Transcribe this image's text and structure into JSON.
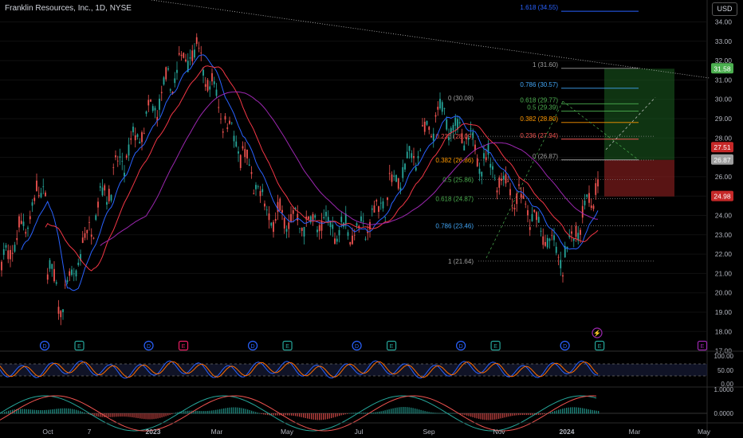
{
  "header": {
    "symbol_title": "Franklin Resources, Inc., 1D, NYSE",
    "currency_button": "USD"
  },
  "colors": {
    "up": "#26a69a",
    "down": "#ef5350",
    "green_zone": "#1b5e20",
    "red_zone": "#7f1d1d",
    "blue": "#2962ff"
  },
  "chart_data": {
    "type": "candlestick",
    "price_axis": {
      "ticks": [
        "34.00",
        "33.00",
        "32.00",
        "31.00",
        "30.00",
        "29.00",
        "28.00",
        "27.00",
        "26.00",
        "25.00",
        "24.00",
        "23.00",
        "22.00",
        "21.00",
        "20.00",
        "19.00",
        "18.00",
        "17.00"
      ]
    },
    "price_tags": [
      {
        "label": "31.58",
        "value": 31.58,
        "color": "#4caf50"
      },
      {
        "label": "27.51",
        "value": 27.51,
        "color": "#c62828"
      },
      {
        "label": "26.87",
        "value": 26.87,
        "color": "#9e9e9e"
      },
      {
        "label": "24.98",
        "value": 24.98,
        "color": "#c62828"
      }
    ],
    "time_axis": [
      "Oct",
      "7",
      "2023",
      "Mar",
      "May",
      "Jul",
      "Sep",
      "Nov",
      "2024",
      "Mar",
      "May"
    ],
    "fib_left": [
      {
        "label": "0.236 (28.09)",
        "value": 28.09,
        "color": "#ef5350"
      },
      {
        "label": "0.382 (26.86)",
        "value": 26.86,
        "color": "#ff9800"
      },
      {
        "label": "0.5 (25.86)",
        "value": 25.86,
        "color": "#4caf50"
      },
      {
        "label": "0.618 (24.87)",
        "value": 24.87,
        "color": "#4caf50"
      },
      {
        "label": "0.786 (23.46)",
        "value": 23.46,
        "color": "#42a5f5"
      },
      {
        "label": "1 (21.64)",
        "value": 21.64,
        "color": "#9e9e9e"
      }
    ],
    "fib_right": [
      {
        "label": "1.618 (34.55)",
        "value": 34.55,
        "color": "#2962ff"
      },
      {
        "label": "1 (31.60)",
        "value": 31.6,
        "color": "#9e9e9e"
      },
      {
        "label": "0.786 (30.57)",
        "value": 30.57,
        "color": "#42a5f5"
      },
      {
        "label": "0.618 (29.77)",
        "value": 29.77,
        "color": "#4caf50"
      },
      {
        "label": "0.5 (29.39)",
        "value": 29.39,
        "color": "#4caf50"
      },
      {
        "label": "0.382 (28.80)",
        "value": 28.8,
        "color": "#ff9800"
      },
      {
        "label": "0.236 (27.94)",
        "value": 27.94,
        "color": "#ef5350"
      },
      {
        "label": "0 (26.87)",
        "value": 26.87,
        "color": "#9e9e9e"
      }
    ],
    "fib_extra_label": "0 (30.08)",
    "position": {
      "take_profit": 31.58,
      "entry": 26.87,
      "stop": 24.98
    },
    "events": [
      {
        "kind": "D",
        "month": 0
      },
      {
        "kind": "E",
        "month": 1
      },
      {
        "kind": "D",
        "month": 3
      },
      {
        "kind": "E",
        "month": 4
      },
      {
        "kind": "D",
        "month": 6
      },
      {
        "kind": "E",
        "month": 7
      },
      {
        "kind": "D",
        "month": 9
      },
      {
        "kind": "E",
        "month": 10
      },
      {
        "kind": "D",
        "month": 12
      },
      {
        "kind": "E",
        "month": 13
      },
      {
        "kind": "D",
        "month": 15
      },
      {
        "kind": "E",
        "month": 16
      },
      {
        "kind": "E",
        "month": 20
      }
    ],
    "oscillator_1": {
      "ticks": [
        "100.00",
        "50.00",
        "0.00"
      ]
    },
    "oscillator_2": {
      "ticks": [
        "1.0000",
        "0.0000"
      ]
    },
    "key_points": [
      {
        "date": "2022-09-30",
        "value": 21.5
      },
      {
        "date": "2022-10-12",
        "value": 19.3
      },
      {
        "date": "2022-11-10",
        "value": 24.8
      },
      {
        "date": "2023-01-20",
        "value": 32.8
      },
      {
        "date": "2023-03-20",
        "value": 24.0
      },
      {
        "date": "2023-05-31",
        "value": 23.2
      },
      {
        "date": "2023-07-31",
        "value": 29.3
      },
      {
        "date": "2023-09-29",
        "value": 24.8
      },
      {
        "date": "2023-10-31",
        "value": 21.64
      },
      {
        "date": "2023-12-28",
        "value": 30.08
      },
      {
        "date": "2024-01-22",
        "value": 26.87
      }
    ]
  }
}
